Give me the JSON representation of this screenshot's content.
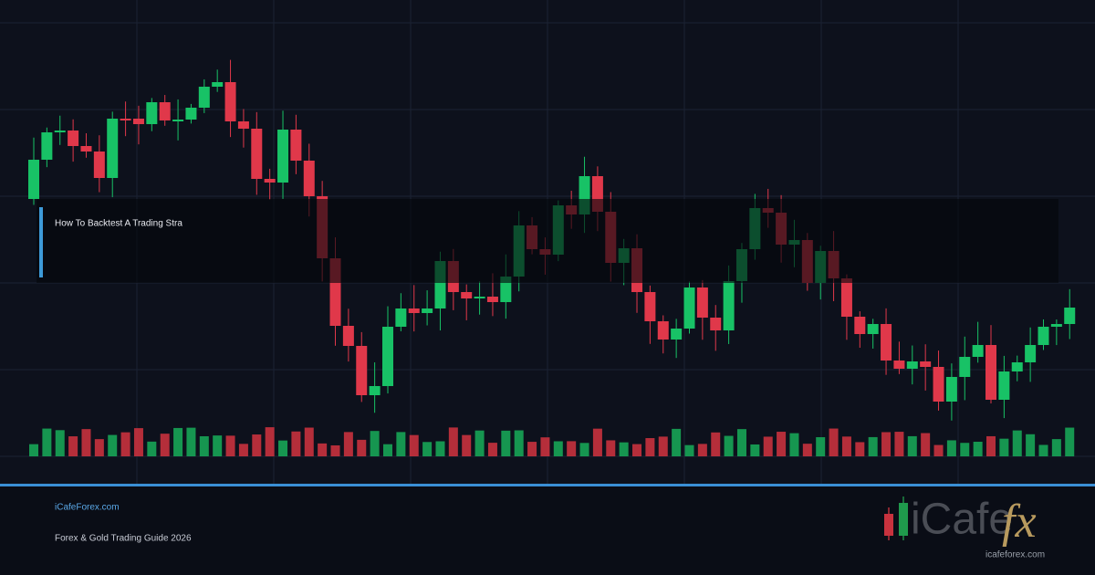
{
  "card": {
    "headline": "How To Backtest A Trading Stra",
    "site": "iCafeForex.com",
    "tagline": "Forex & Gold Trading Guide 2026",
    "logo": {
      "brand": "iCafe",
      "mark": "fx",
      "url": "icafeforex.com"
    }
  }
}
